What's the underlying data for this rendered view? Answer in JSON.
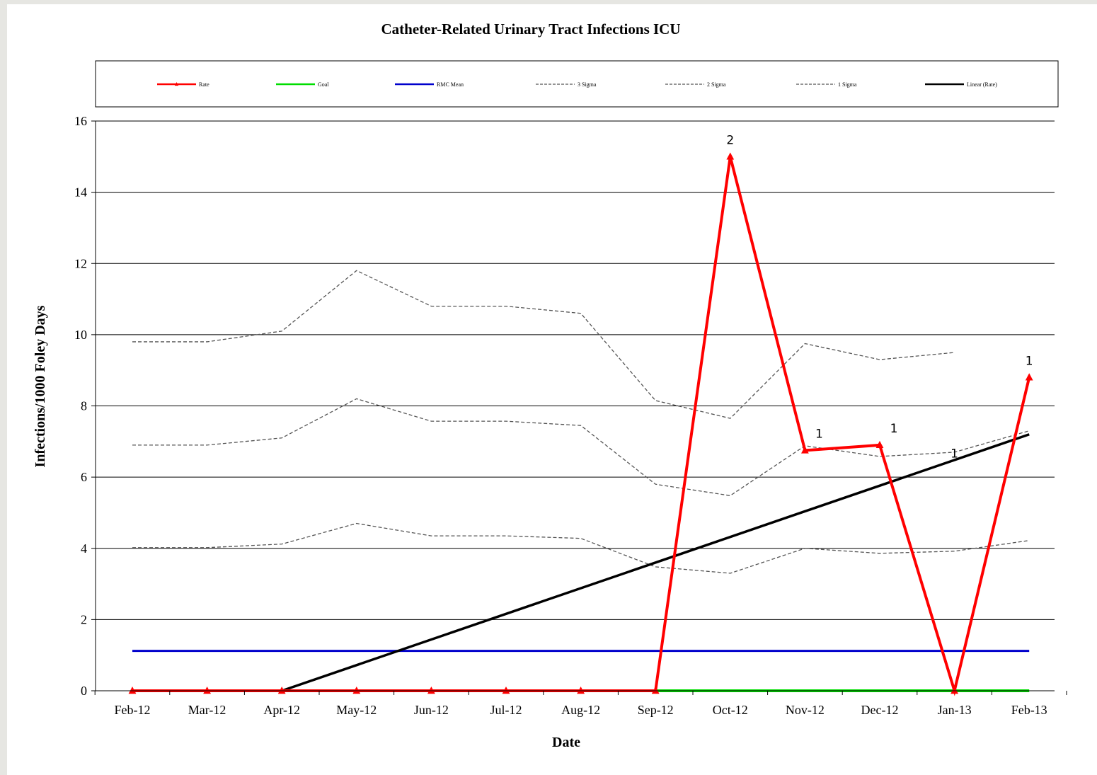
{
  "chart_data": {
    "type": "line",
    "title": "Catheter-Related Urinary Tract Infections ICU",
    "xlabel": "Date",
    "ylabel": "Infections/1000 Foley Days",
    "categories": [
      "Feb-12",
      "Mar-12",
      "Apr-12",
      "May-12",
      "Jun-12",
      "Jul-12",
      "Aug-12",
      "Sep-12",
      "Oct-12",
      "Nov-12",
      "Dec-12",
      "Jan-13",
      "Feb-13"
    ],
    "ylim": [
      0,
      16
    ],
    "yticks": [
      "0",
      "2",
      "4",
      "6",
      "8",
      "10",
      "12",
      "14",
      "16"
    ],
    "grid": "horizontal",
    "legend_position": "top",
    "series": [
      {
        "name": "Rate",
        "color": "#ff0000",
        "style": "solid-triangle-markers",
        "values": [
          0,
          0,
          0,
          0,
          0,
          0,
          0,
          0,
          15.0,
          6.75,
          6.9,
          0,
          8.8
        ],
        "labels": [
          "",
          "",
          "",
          "",
          "",
          "",
          "",
          "",
          "2",
          "1",
          "1",
          "1",
          "1"
        ]
      },
      {
        "name": "Goal",
        "color": "#00dd00",
        "style": "solid",
        "values": [
          0,
          0,
          0,
          0,
          0,
          0,
          0,
          0,
          0,
          0,
          0,
          0,
          0
        ]
      },
      {
        "name": "RMC Mean",
        "color": "#0000cc",
        "style": "solid",
        "values": [
          1.12,
          1.12,
          1.12,
          1.12,
          1.12,
          1.12,
          1.12,
          1.12,
          1.12,
          1.12,
          1.12,
          1.12,
          1.12
        ]
      },
      {
        "name": "3 Sigma",
        "color": "#555555",
        "style": "dashed",
        "values": [
          9.8,
          9.8,
          10.1,
          11.8,
          10.8,
          10.8,
          10.6,
          8.15,
          7.65,
          9.75,
          9.3,
          9.5,
          null
        ]
      },
      {
        "name": "2 Sigma",
        "color": "#555555",
        "style": "dashed",
        "values": [
          6.9,
          6.9,
          7.1,
          8.2,
          7.57,
          7.57,
          7.45,
          5.8,
          5.48,
          6.88,
          6.58,
          6.7,
          7.3
        ]
      },
      {
        "name": "1 Sigma",
        "color": "#555555",
        "style": "dashed",
        "values": [
          4.02,
          4.02,
          4.12,
          4.7,
          4.35,
          4.35,
          4.28,
          3.48,
          3.3,
          4.0,
          3.86,
          3.92,
          4.22
        ]
      },
      {
        "name": "Linear (Rate)",
        "color": "#000000",
        "style": "solid-thick",
        "start": {
          "x": "Apr-12",
          "y": 0
        },
        "end": {
          "x": "Feb-13",
          "y": 7.2
        }
      }
    ]
  }
}
